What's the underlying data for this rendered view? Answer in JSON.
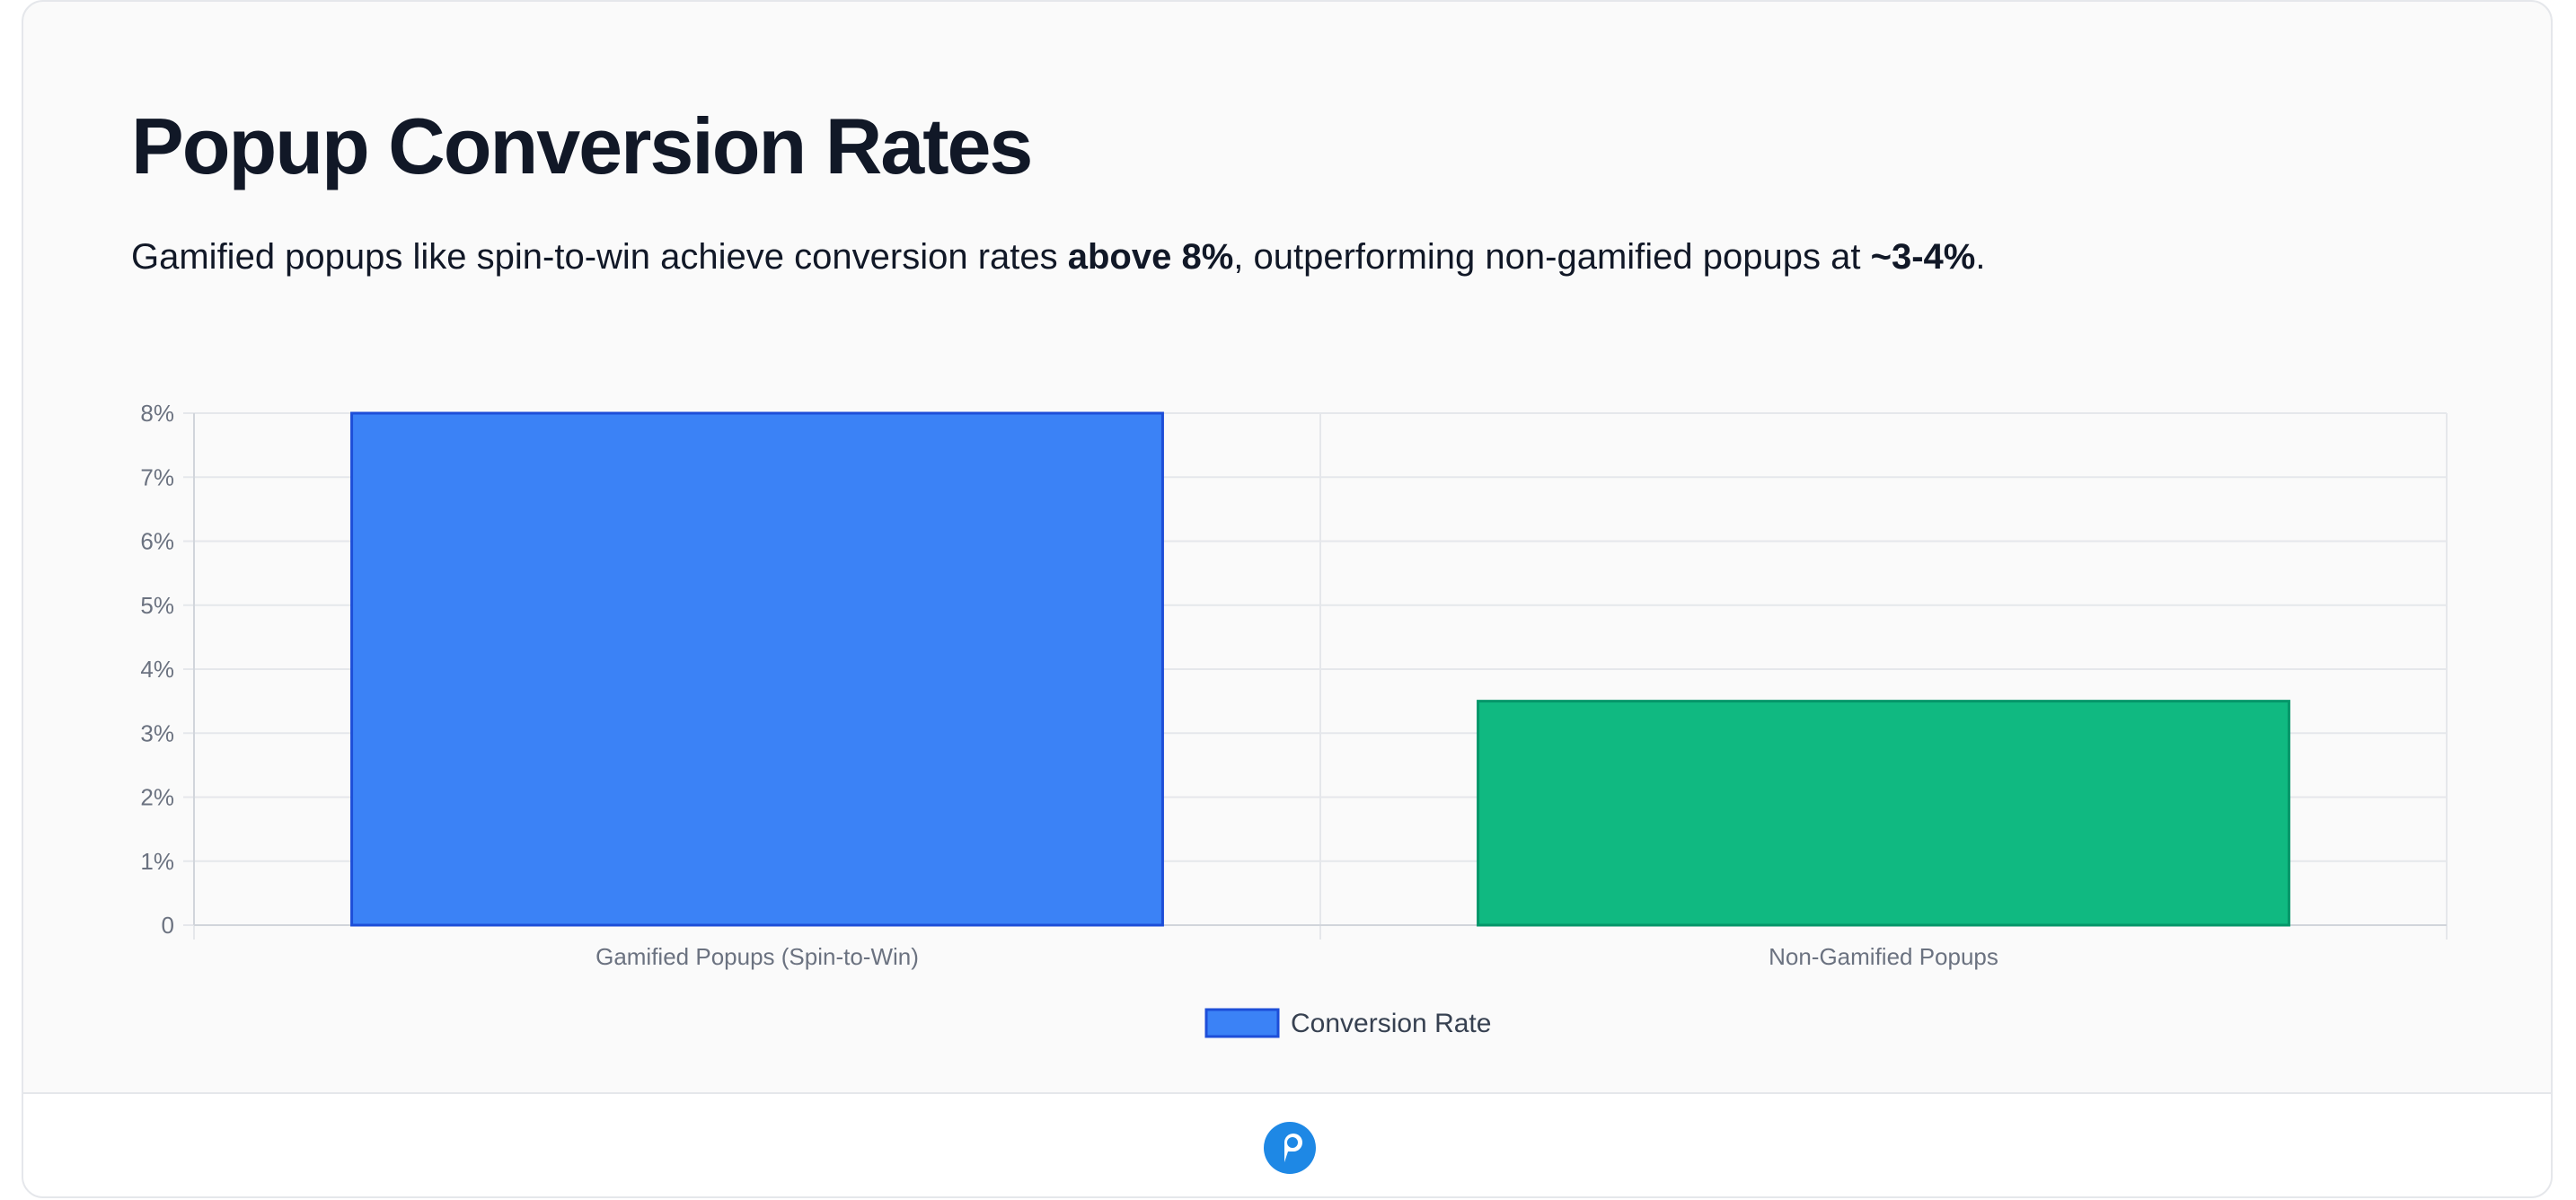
{
  "header": {
    "title": "Popup Conversion Rates",
    "subtitle_parts": [
      "Gamified popups like spin-to-win achieve conversion rates ",
      "above 8%",
      ", outperforming non-gamified popups at ",
      "~3-4%",
      "."
    ]
  },
  "chart_data": {
    "type": "bar",
    "categories": [
      "Gamified Popups (Spin-to-Win)",
      "Non-Gamified Popups"
    ],
    "series": [
      {
        "name": "Conversion Rate",
        "values": [
          8,
          3.5
        ]
      }
    ],
    "ylim": [
      0,
      8
    ],
    "yticks": [
      "0",
      "1%",
      "2%",
      "3%",
      "4%",
      "5%",
      "6%",
      "7%",
      "8%"
    ],
    "grid": true,
    "legend_position": "bottom",
    "bar_colors": [
      "#3b82f6",
      "#10b981"
    ],
    "bar_border_colors": [
      "#1d4ed8",
      "#059669"
    ],
    "legend_color": "#3b82f6",
    "legend_border_color": "#1d4ed8"
  },
  "footer": {
    "logo_icon": "chat-bubble-logo-icon",
    "accent_color": "#1e88e5"
  }
}
